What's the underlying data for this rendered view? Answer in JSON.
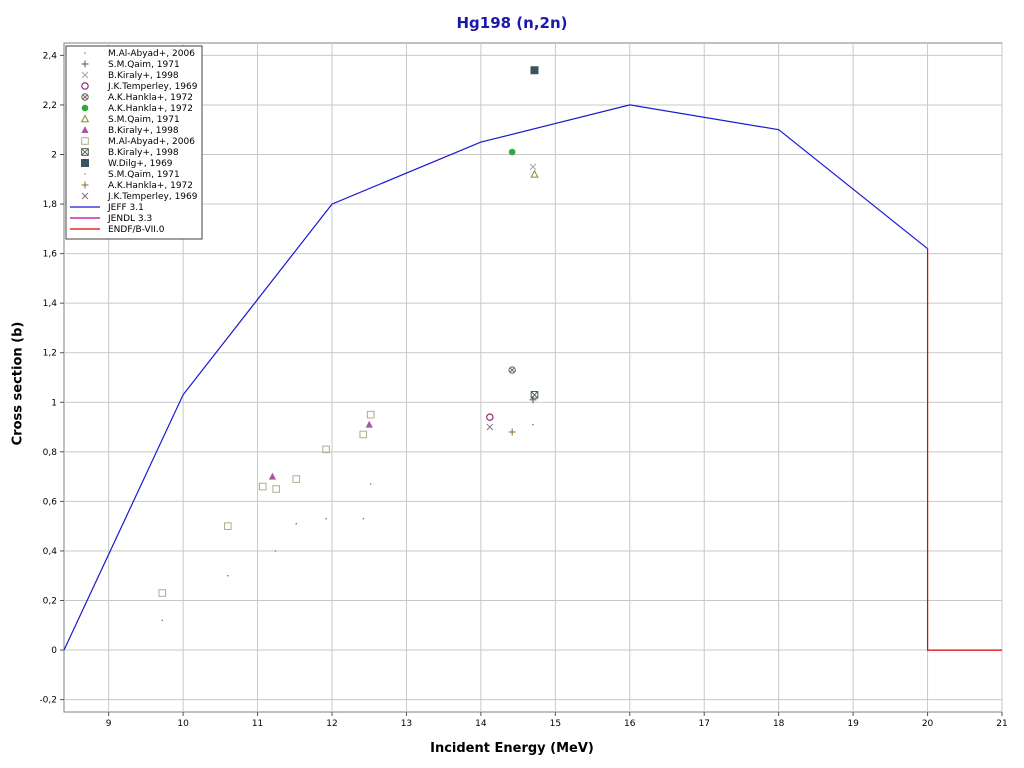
{
  "chart_data": {
    "type": "scatter",
    "title": "Hg198 (n,2n)",
    "xlabel": "Incident Energy (MeV)",
    "ylabel": "Cross section (b)",
    "xlim": [
      8.4,
      21
    ],
    "ylim": [
      -0.25,
      2.45
    ],
    "x_ticks": [
      {
        "value": 9,
        "label": "9"
      },
      {
        "value": 10,
        "label": "10"
      },
      {
        "value": 11,
        "label": "11"
      },
      {
        "value": 12,
        "label": "12"
      },
      {
        "value": 13,
        "label": "13"
      },
      {
        "value": 14,
        "label": "14"
      },
      {
        "value": 15,
        "label": "15"
      },
      {
        "value": 16,
        "label": "16"
      },
      {
        "value": 17,
        "label": "17"
      },
      {
        "value": 18,
        "label": "18"
      },
      {
        "value": 19,
        "label": "19"
      },
      {
        "value": 20,
        "label": "20"
      },
      {
        "value": 21,
        "label": "21"
      }
    ],
    "y_ticks": [
      {
        "value": -0.2,
        "label": "-0,2"
      },
      {
        "value": 0,
        "label": "0"
      },
      {
        "value": 0.2,
        "label": "0,2"
      },
      {
        "value": 0.4,
        "label": "0,4"
      },
      {
        "value": 0.6,
        "label": "0,6"
      },
      {
        "value": 0.8,
        "label": "0,8"
      },
      {
        "value": 1.0,
        "label": "1"
      },
      {
        "value": 1.2,
        "label": "1,2"
      },
      {
        "value": 1.4,
        "label": "1,4"
      },
      {
        "value": 1.6,
        "label": "1,6"
      },
      {
        "value": 1.8,
        "label": "1,8"
      },
      {
        "value": 2.0,
        "label": "2"
      },
      {
        "value": 2.2,
        "label": "2,2"
      },
      {
        "value": 2.4,
        "label": "2,4"
      }
    ],
    "grid": true,
    "legend_position": "top-left",
    "series": [
      {
        "name": "M.Al-Abyad+, 2006",
        "marker": "dot",
        "color": "#7a7a7a",
        "x": [
          9.72,
          10.6,
          11.24,
          11.52,
          11.92,
          12.42,
          12.52,
          14.7
        ],
        "y": [
          0.12,
          0.3,
          0.4,
          0.51,
          0.53,
          0.53,
          0.67,
          0.91
        ]
      },
      {
        "name": "S.M.Qaim, 1971",
        "marker": "plus",
        "color": "#555555",
        "x": [
          14.7
        ],
        "y": [
          1.01
        ]
      },
      {
        "name": "B.Kiraly+, 1998",
        "marker": "cross",
        "color": "#b0a0a0",
        "x": [
          14.7
        ],
        "y": [
          1.95
        ]
      },
      {
        "name": "J.K.Temperley, 1969",
        "marker": "circle-open",
        "color": "#8a1a6a",
        "x": [
          14.12
        ],
        "y": [
          0.94
        ]
      },
      {
        "name": "A.K.Hankla+, 1972",
        "marker": "circle-cross",
        "color": "#6a5a5a",
        "x": [
          14.42
        ],
        "y": [
          1.13
        ]
      },
      {
        "name": "A.K.Hankla+, 1972",
        "marker": "circle-filled",
        "color": "#2faa40",
        "x": [
          14.42
        ],
        "y": [
          2.01
        ]
      },
      {
        "name": "S.M.Qaim, 1971",
        "marker": "triangle-open",
        "color": "#8a8a2a",
        "x": [
          14.72
        ],
        "y": [
          1.92
        ]
      },
      {
        "name": "B.Kiraly+, 1998",
        "marker": "triangle-filled",
        "color": "#a855a8",
        "x": [
          11.2,
          12.5
        ],
        "y": [
          0.7,
          0.91
        ]
      },
      {
        "name": "M.Al-Abyad+, 2006",
        "marker": "square-open",
        "color": "#b8a890",
        "x": [
          9.72,
          10.6,
          11.07,
          11.25,
          11.52,
          11.92,
          12.42,
          12.52
        ],
        "y": [
          0.23,
          0.5,
          0.66,
          0.65,
          0.69,
          0.81,
          0.87,
          0.95
        ]
      },
      {
        "name": "B.Kiraly+, 1998",
        "marker": "square-cross",
        "color": "#4a5a4a",
        "x": [
          14.72
        ],
        "y": [
          1.03
        ]
      },
      {
        "name": "W.Dilg+, 1969",
        "marker": "square-filled",
        "color": "#3a5560",
        "x": [
          14.72
        ],
        "y": [
          2.34
        ]
      },
      {
        "name": "S.M.Qaim, 1971",
        "marker": "dot",
        "color": "#9a9a9a",
        "x": [],
        "y": []
      },
      {
        "name": "A.K.Hankla+, 1972",
        "marker": "plus",
        "color": "#8a6a2a",
        "x": [
          14.42
        ],
        "y": [
          0.88
        ]
      },
      {
        "name": "J.K.Temperley, 1969",
        "marker": "cross",
        "color": "#8a6a8a",
        "x": [
          14.12
        ],
        "y": [
          0.9
        ]
      }
    ],
    "lines": [
      {
        "name": "JEFF 3.1",
        "color": "#1a1ad0",
        "x": [
          8.4,
          10,
          12,
          14,
          16,
          18,
          20
        ],
        "y": [
          0,
          1.03,
          1.8,
          2.05,
          2.2,
          2.1,
          1.62
        ]
      },
      {
        "name": "JENDL 3.3",
        "color": "#b8009a",
        "x": [],
        "y": []
      },
      {
        "name": "ENDF/B-VII.0",
        "color": "#e00000",
        "x": [
          20,
          20,
          21
        ],
        "y": [
          1.62,
          0,
          0
        ]
      }
    ]
  }
}
